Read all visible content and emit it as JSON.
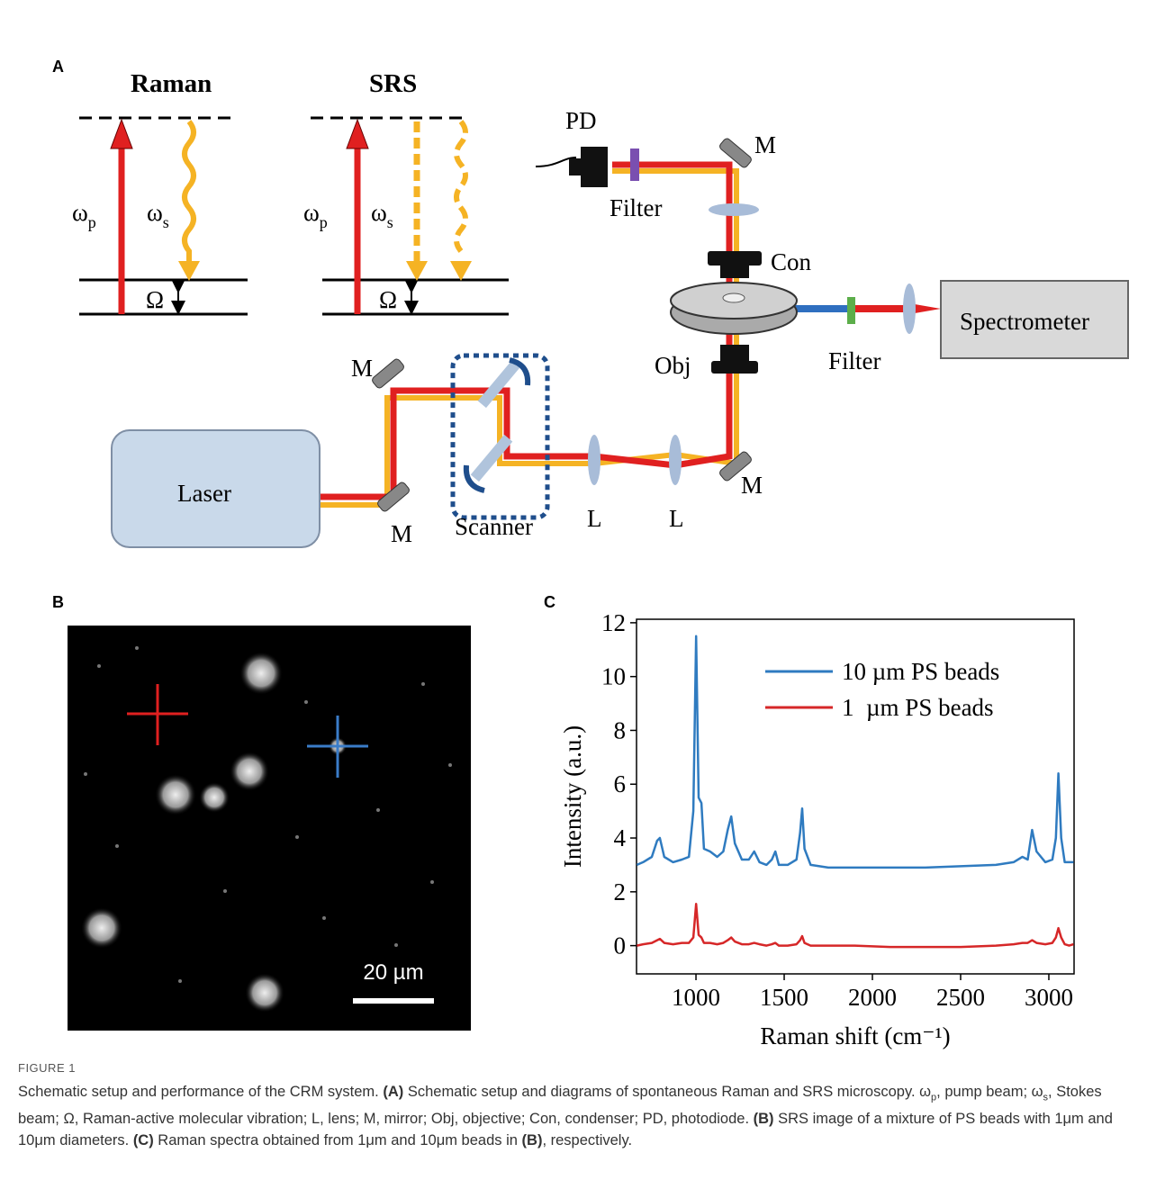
{
  "panel_labels": [
    "A",
    "B",
    "C"
  ],
  "diagram": {
    "labels": [
      "Raman",
      "SRS",
      "ω",
      "p",
      "ω",
      "s",
      "Ω",
      "ω",
      "p",
      "ω",
      "s",
      "Ω",
      "PD",
      "M",
      "Filter",
      "Con",
      "Spectrometer",
      "Obj",
      "Filter",
      "M",
      "Laser",
      "M",
      "M",
      "Scanner",
      "L",
      "L"
    ]
  },
  "panel_b": {
    "scale_bar": "20 µm"
  },
  "chart_data": {
    "type": "line",
    "xlabel": "Raman shift (cm⁻¹)",
    "ylabel": "Intensity (a.u.)",
    "xlim": [
      663,
      3143
    ],
    "ylim": [
      -1.05,
      12.13
    ],
    "xticks": [
      1000,
      1500,
      2000,
      2500,
      3000
    ],
    "yticks": [
      0,
      2,
      4,
      6,
      8,
      10,
      12
    ],
    "legend": "upper right",
    "x": [
      665,
      700,
      750,
      780,
      795,
      820,
      870,
      920,
      960,
      985,
      1001,
      1015,
      1031,
      1045,
      1080,
      1120,
      1155,
      1180,
      1200,
      1220,
      1260,
      1300,
      1330,
      1360,
      1400,
      1430,
      1450,
      1470,
      1520,
      1570,
      1590,
      1602,
      1615,
      1650,
      1750,
      1900,
      2100,
      2300,
      2500,
      2700,
      2800,
      2850,
      2880,
      2905,
      2930,
      2980,
      3020,
      3040,
      3054,
      3070,
      3090,
      3115,
      3140
    ],
    "series": [
      {
        "name": "10 µm PS beads",
        "color": "#2f7bc0",
        "values": [
          3.0,
          3.1,
          3.3,
          3.9,
          4.0,
          3.3,
          3.1,
          3.2,
          3.3,
          5.0,
          11.5,
          5.5,
          5.3,
          3.6,
          3.5,
          3.3,
          3.5,
          4.3,
          4.8,
          3.8,
          3.2,
          3.2,
          3.5,
          3.1,
          3.0,
          3.2,
          3.5,
          3.0,
          3.0,
          3.2,
          4.2,
          5.1,
          3.6,
          3.0,
          2.9,
          2.9,
          2.9,
          2.9,
          2.95,
          3.0,
          3.1,
          3.3,
          3.2,
          4.3,
          3.5,
          3.1,
          3.2,
          4.0,
          6.4,
          4.0,
          3.1,
          3.1,
          3.1
        ]
      },
      {
        "name": "1  µm PS beads",
        "color": "#d62728",
        "values": [
          0.0,
          0.05,
          0.1,
          0.2,
          0.25,
          0.1,
          0.05,
          0.1,
          0.1,
          0.3,
          1.55,
          0.4,
          0.3,
          0.1,
          0.1,
          0.05,
          0.1,
          0.2,
          0.3,
          0.15,
          0.05,
          0.05,
          0.1,
          0.05,
          0.0,
          0.05,
          0.1,
          0.0,
          0.0,
          0.05,
          0.2,
          0.35,
          0.1,
          0.0,
          0.0,
          0.0,
          -0.05,
          -0.05,
          -0.05,
          0.0,
          0.05,
          0.1,
          0.1,
          0.2,
          0.1,
          0.05,
          0.1,
          0.3,
          0.65,
          0.3,
          0.05,
          0.0,
          0.05
        ]
      }
    ]
  },
  "caption": {
    "figure": "FIGURE 1",
    "parts": [
      "Schematic setup and performance of the CRM system. ",
      "(A)",
      " Schematic setup and diagrams of spontaneous Raman and SRS microscopy. ω",
      "p",
      ", pump beam; ω",
      "s",
      ", Stokes beam; Ω, Raman-active molecular vibration; L, lens; M, mirror; Obj, objective; Con, condenser; PD, photodiode. ",
      "(B)",
      " SRS image of a mixture of PS beads with 1μm and 10μm diameters. ",
      "(C)",
      " Raman spectra obtained from 1μm and 10μm beads in ",
      "(B)",
      ", respectively."
    ]
  }
}
